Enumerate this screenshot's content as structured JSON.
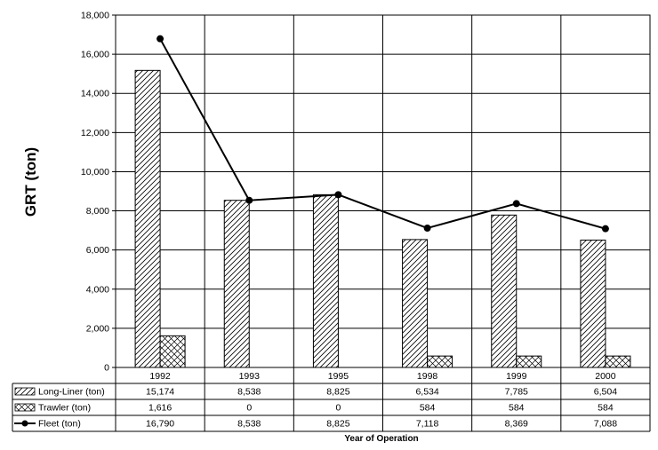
{
  "chart_data": {
    "type": "bar",
    "title": "",
    "ylabel": "GRT (ton)",
    "xlabel": "Year of Operation",
    "ylim": [
      0,
      18000
    ],
    "yticks": [
      0,
      2000,
      4000,
      6000,
      8000,
      10000,
      12000,
      14000,
      16000,
      18000
    ],
    "ytick_labels": [
      "0",
      "2,000",
      "4,000",
      "6,000",
      "8,000",
      "10,000",
      "12,000",
      "14,000",
      "16,000",
      "18,000"
    ],
    "categories": [
      "1992",
      "1993",
      "1995",
      "1998",
      "1999",
      "2000"
    ],
    "grid": true,
    "legend_placement": "data-table-bottom",
    "series": [
      {
        "name": "Long-Liner (ton)",
        "kind": "bar",
        "pattern": "diagonal-hatch",
        "values": [
          15174,
          8538,
          8825,
          6534,
          7785,
          6504
        ],
        "labels": [
          "15,174",
          "8,538",
          "8,825",
          "6,534",
          "7,785",
          "6,504"
        ]
      },
      {
        "name": "Trawler (ton)",
        "kind": "bar",
        "pattern": "cross-hatch",
        "values": [
          1616,
          0,
          0,
          584,
          584,
          584
        ],
        "labels": [
          "1,616",
          "0",
          "0",
          "584",
          "584",
          "584"
        ]
      },
      {
        "name": "Fleet (ton)",
        "kind": "line",
        "marker": "circle",
        "values": [
          16790,
          8538,
          8825,
          7118,
          8369,
          7088
        ],
        "labels": [
          "16,790",
          "8,538",
          "8,825",
          "7,118",
          "8,369",
          "7,088"
        ]
      }
    ]
  }
}
